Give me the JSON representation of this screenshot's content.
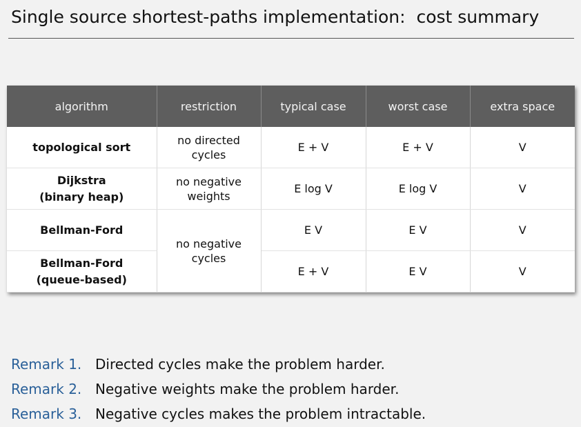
{
  "title": "Single source shortest-paths implementation:  cost summary",
  "table": {
    "headers": [
      "algorithm",
      "restriction",
      "typical case",
      "worst case",
      "extra space"
    ],
    "rows": [
      {
        "algorithm": [
          "topological sort"
        ],
        "restriction": [
          "no directed",
          "cycles"
        ],
        "typical": "E + V",
        "worst": "E + V",
        "space": "V"
      },
      {
        "algorithm": [
          "Dijkstra",
          "(binary heap)"
        ],
        "restriction": [
          "no negative",
          "weights"
        ],
        "typical": "E log V",
        "worst": "E log V",
        "space": "V"
      },
      {
        "algorithm": [
          "Bellman-Ford"
        ],
        "restriction": [
          "no negative",
          "cycles"
        ],
        "typical": "E V",
        "worst": "E V",
        "space": "V"
      },
      {
        "algorithm": [
          "Bellman-Ford",
          "(queue-based)"
        ],
        "typical": "E + V",
        "worst": "E V",
        "space": "V"
      }
    ]
  },
  "remarks": [
    {
      "label": "Remark 1.",
      "text": "Directed cycles make the problem harder."
    },
    {
      "label": "Remark 2.",
      "text": "Negative weights make the problem harder."
    },
    {
      "label": "Remark 3.",
      "text": "Negative cycles makes the problem intractable."
    }
  ],
  "colors": {
    "header_bg": "#5e5e5e",
    "remark_label": "#2a6099",
    "page_bg": "#f2f2f2"
  }
}
